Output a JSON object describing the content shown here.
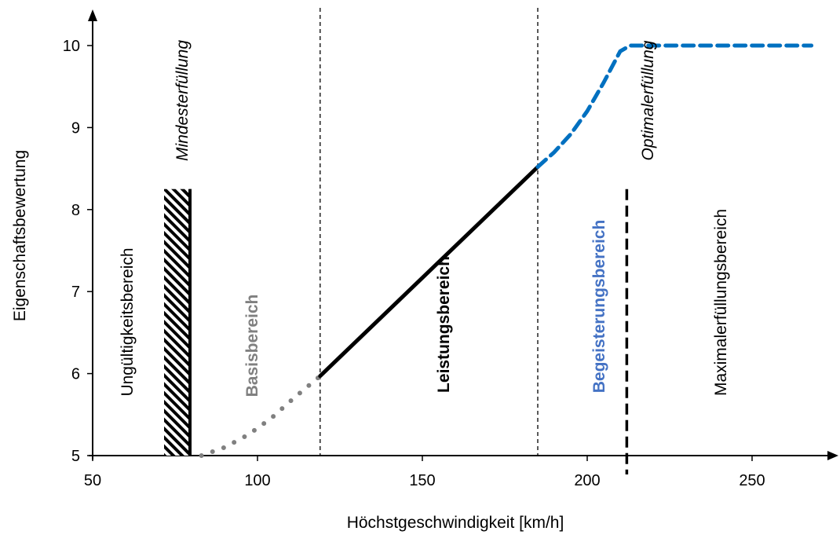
{
  "chart_data": {
    "type": "line",
    "title": "",
    "xlabel": "Höchstgeschwindigkeit [km/h]",
    "ylabel": "Eigenschaftsbewertung",
    "xlim": [
      50,
      270
    ],
    "ylim": [
      5,
      10.45
    ],
    "x_ticks": [
      "50",
      "100",
      "150",
      "200",
      "250"
    ],
    "y_ticks": [
      "5",
      "6",
      "7",
      "8",
      "9",
      "10"
    ],
    "grid": false,
    "legend": "none",
    "series": [
      {
        "style": "dotted",
        "color": "#808080",
        "x": [
          83,
          90,
          97,
          104,
          111,
          119
        ],
        "y": [
          5.0,
          5.1,
          5.25,
          5.45,
          5.7,
          5.97
        ]
      },
      {
        "style": "solid",
        "color": "#000000",
        "x": [
          119,
          185
        ],
        "y": [
          5.97,
          8.52
        ]
      },
      {
        "style": "dashed",
        "color": "#0070C0",
        "x": [
          185,
          190,
          195,
          200,
          205,
          210,
          213,
          268
        ],
        "y": [
          8.52,
          8.7,
          8.92,
          9.2,
          9.55,
          9.93,
          10.0,
          10.0
        ]
      }
    ],
    "boundaries": [
      {
        "x": 80,
        "style": "hatched-bar",
        "label": "Mindesterfüllung",
        "label_style": "italic"
      },
      {
        "x": 119,
        "style": "dashed-thin"
      },
      {
        "x": 185,
        "style": "dashed-thin"
      },
      {
        "x": 212,
        "style": "dashed-thick",
        "label": "Optimalerfüllung",
        "label_style": "italic"
      }
    ],
    "regions": [
      {
        "label": "Ungültigkeitsbereich",
        "color": "#000000",
        "bold": false
      },
      {
        "label": "Basisbereich",
        "color": "#808080",
        "bold": true
      },
      {
        "label": "Leistungsbereich",
        "color": "#000000",
        "bold": true
      },
      {
        "label": "Begeisterungsbereich",
        "color": "#4472C4",
        "bold": true
      },
      {
        "label": "Maximalerfüllungsbereich",
        "color": "#000000",
        "bold": false
      }
    ]
  }
}
